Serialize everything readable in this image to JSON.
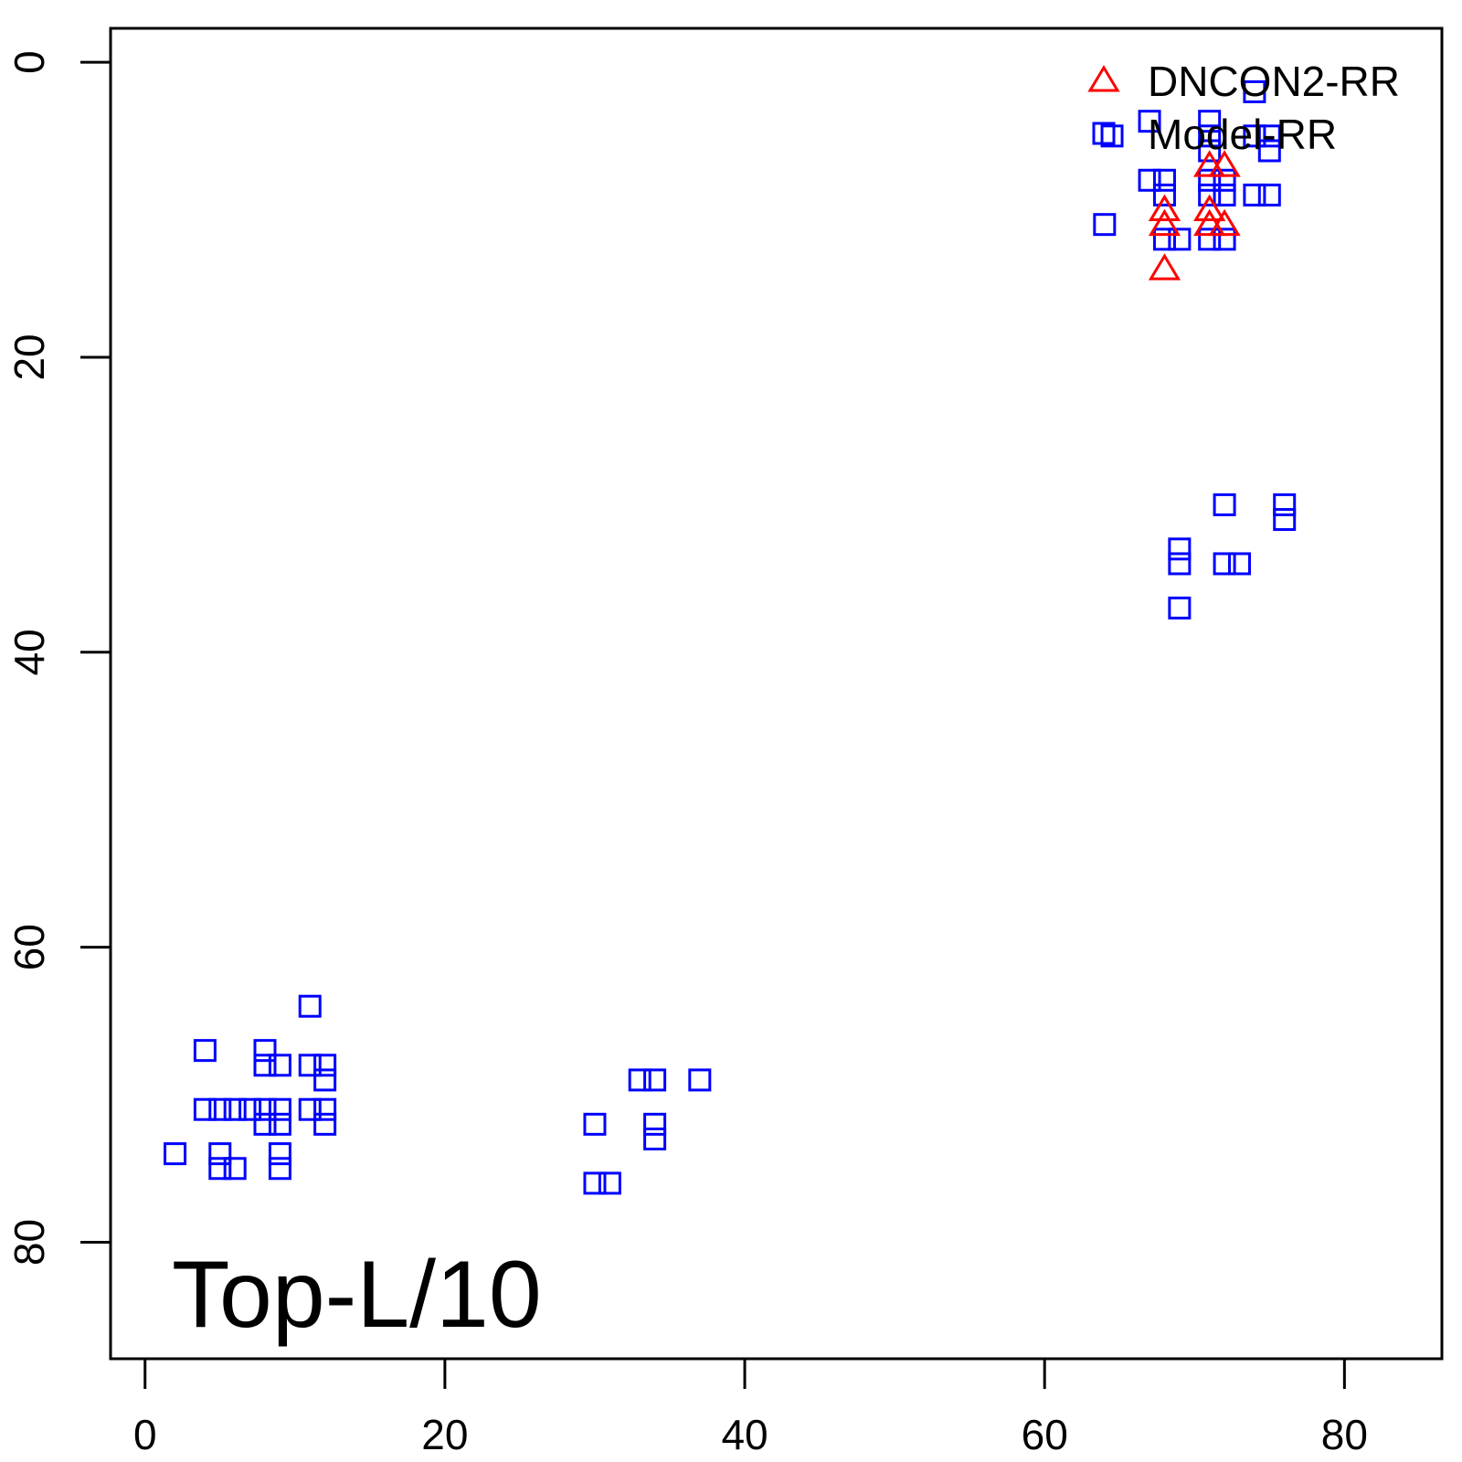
{
  "chart_data": {
    "type": "scatter",
    "xlim": [
      -2.3,
      86.5
    ],
    "ylim": [
      -2.3,
      87.9
    ],
    "y_reversed": true,
    "x_ticks": [
      0,
      20,
      40,
      60,
      80
    ],
    "y_ticks": [
      0,
      20,
      40,
      60,
      80
    ],
    "x_tick_labels": [
      "0",
      "20",
      "40",
      "60",
      "80"
    ],
    "y_tick_labels": [
      "0",
      "20",
      "40",
      "60",
      "80"
    ],
    "grid": false,
    "legend_position": "top-right",
    "panel_label": "Top-L/10",
    "colors": {
      "dncon2": "#ff0000",
      "model": "#0000ff",
      "axis": "#000000"
    },
    "series": [
      {
        "name": "DNCON2-RR",
        "marker": "triangle-open",
        "color": "#ff0000",
        "points": [
          [
            68,
            10
          ],
          [
            68,
            11
          ],
          [
            71,
            7
          ],
          [
            71,
            10
          ],
          [
            71,
            11
          ],
          [
            72,
            7
          ],
          [
            72,
            11
          ],
          [
            68,
            14
          ]
        ]
      },
      {
        "name": "Model-RR",
        "marker": "square-open",
        "color": "#0000ff",
        "points": [
          [
            74,
            2
          ],
          [
            71,
            4
          ],
          [
            67,
            4
          ],
          [
            64.5,
            5
          ],
          [
            71,
            5
          ],
          [
            74,
            5
          ],
          [
            75,
            5
          ],
          [
            71,
            6
          ],
          [
            75,
            6
          ],
          [
            67,
            8
          ],
          [
            68,
            8
          ],
          [
            71,
            8
          ],
          [
            72,
            8
          ],
          [
            68,
            9
          ],
          [
            71,
            9
          ],
          [
            72,
            9
          ],
          [
            74,
            9
          ],
          [
            75,
            9
          ],
          [
            64,
            11
          ],
          [
            68,
            12
          ],
          [
            69,
            12
          ],
          [
            71,
            12
          ],
          [
            72,
            12
          ],
          [
            72,
            30
          ],
          [
            76,
            30
          ],
          [
            76,
            31
          ],
          [
            69,
            33
          ],
          [
            69,
            34
          ],
          [
            72,
            34
          ],
          [
            73,
            34
          ],
          [
            69,
            37
          ],
          [
            11,
            64
          ],
          [
            4,
            67
          ],
          [
            8,
            67
          ],
          [
            8,
            68
          ],
          [
            9,
            68
          ],
          [
            11,
            68
          ],
          [
            12,
            68
          ],
          [
            12,
            69
          ],
          [
            4,
            71
          ],
          [
            5,
            71
          ],
          [
            6,
            71
          ],
          [
            7,
            71
          ],
          [
            8,
            71
          ],
          [
            9,
            71
          ],
          [
            11,
            71
          ],
          [
            12,
            71
          ],
          [
            8,
            72
          ],
          [
            9,
            72
          ],
          [
            12,
            72
          ],
          [
            2,
            74
          ],
          [
            5,
            74
          ],
          [
            9,
            74
          ],
          [
            5,
            75
          ],
          [
            6,
            75
          ],
          [
            9,
            75
          ],
          [
            33,
            69
          ],
          [
            34,
            69
          ],
          [
            37,
            69
          ],
          [
            30,
            72
          ],
          [
            34,
            72
          ],
          [
            34,
            73
          ],
          [
            30,
            76
          ],
          [
            31,
            76
          ]
        ]
      }
    ]
  }
}
